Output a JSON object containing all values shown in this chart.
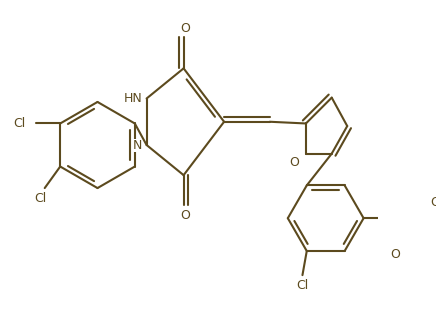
{
  "background_color": "#ffffff",
  "line_color": "#5c4a1e",
  "line_width": 1.5,
  "figsize": [
    4.36,
    3.33
  ],
  "dpi": 100,
  "xlim": [
    0,
    436
  ],
  "ylim": [
    0,
    333
  ]
}
